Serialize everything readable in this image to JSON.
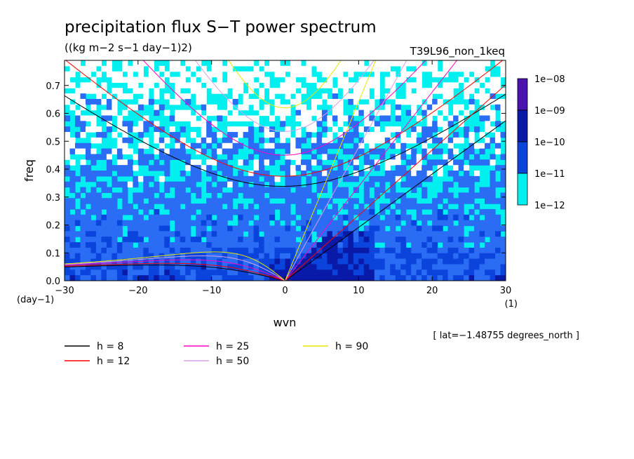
{
  "chart_data": {
    "type": "heatmap",
    "title": "precipitation flux S−T power spectrum",
    "subtitle": "((kg m−2 s−1 day−1)2)",
    "run_label": "T39L96_non_1keq",
    "xlabel": "wvn",
    "ylabel": "freq",
    "x_unit_label": "(1)",
    "y_unit_label": "(day−1)",
    "xlim": [
      -30,
      30
    ],
    "ylim": [
      0,
      0.79
    ],
    "x_ticks": [
      -30,
      -20,
      -10,
      0,
      10,
      20,
      30
    ],
    "x_tick_labels": [
      "−30",
      "−20",
      "−10",
      "0",
      "10",
      "20",
      "30"
    ],
    "y_ticks": [
      0,
      0.1,
      0.2,
      0.3,
      0.4,
      0.5,
      0.6,
      0.7
    ],
    "y_tick_labels": [
      "0.0",
      "0.1",
      "0.2",
      "0.3",
      "0.4",
      "0.5",
      "0.6",
      "0.7"
    ],
    "colorbar": {
      "labels": [
        "1e−08",
        "1e−09",
        "1e−10",
        "1e−11",
        "1e−12"
      ],
      "colors": [
        "#4a12b0",
        "#0a1aa8",
        "#0a44dc",
        "#2a6cf4",
        "#00f0f0"
      ]
    },
    "note": "[ lat=−1.48755 degrees_north ]",
    "dispersion_curves": [
      {
        "label": "h =  8",
        "equivalent_depth_m": 8,
        "color": "#000000"
      },
      {
        "label": "h = 12",
        "equivalent_depth_m": 12,
        "color": "#ff0000"
      },
      {
        "label": "h = 25",
        "equivalent_depth_m": 25,
        "color": "#ff00c0"
      },
      {
        "label": "h = 50",
        "equivalent_depth_m": 50,
        "color": "#d8a0e8"
      },
      {
        "label": "h = 90",
        "equivalent_depth_m": 90,
        "color": "#e8e800"
      }
    ]
  }
}
